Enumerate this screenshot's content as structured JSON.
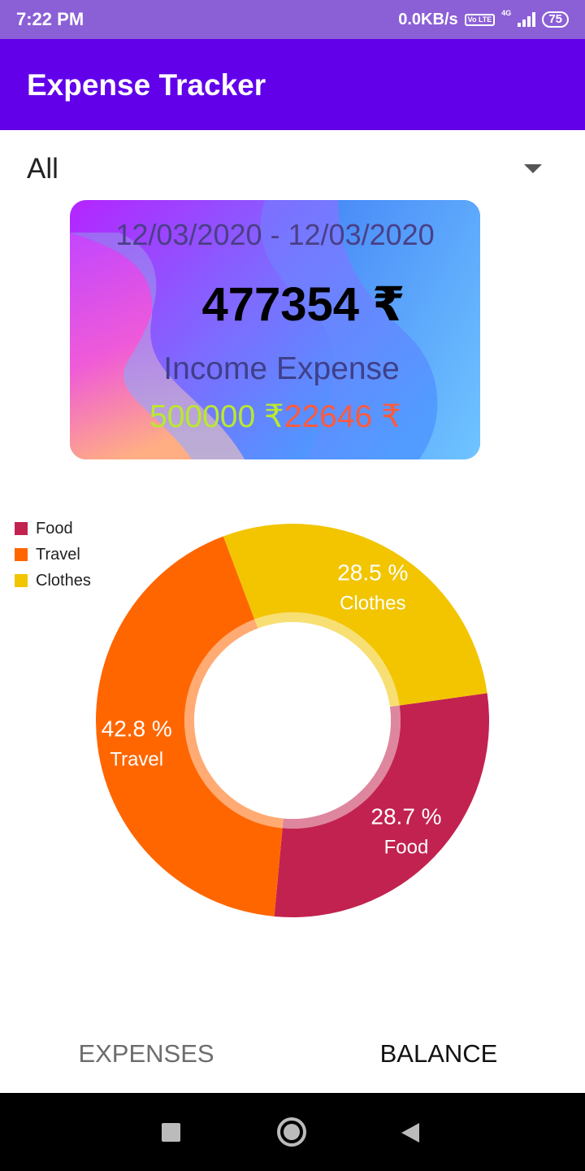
{
  "status_bar": {
    "time": "7:22 PM",
    "speed": "0.0KB/s",
    "volte": "Vo LTE",
    "network": "4G",
    "battery": "75"
  },
  "app_bar": {
    "title": "Expense Tracker"
  },
  "filter": {
    "selected": "All"
  },
  "summary_card": {
    "date_range": "12/03/2020 - 12/03/2020",
    "balance": "477354 ₹",
    "labels": "Income Expense",
    "income": "500000 ₹",
    "expense": "22646 ₹"
  },
  "legend": [
    {
      "label": "Food",
      "color": "#c2224f"
    },
    {
      "label": "Travel",
      "color": "#ff6600"
    },
    {
      "label": "Clothes",
      "color": "#f2c500"
    }
  ],
  "chart_data": {
    "type": "pie",
    "donut": true,
    "legend_position": "top-left",
    "categories": [
      "Food",
      "Travel",
      "Clothes"
    ],
    "values": [
      28.7,
      42.8,
      28.5
    ],
    "value_labels": [
      "28.7 %",
      "42.8 %",
      "28.5 %"
    ],
    "colors": [
      "#c2224f",
      "#ff6600",
      "#f2c500"
    ]
  },
  "tabs": {
    "expenses": "EXPENSES",
    "balance": "BALANCE"
  }
}
